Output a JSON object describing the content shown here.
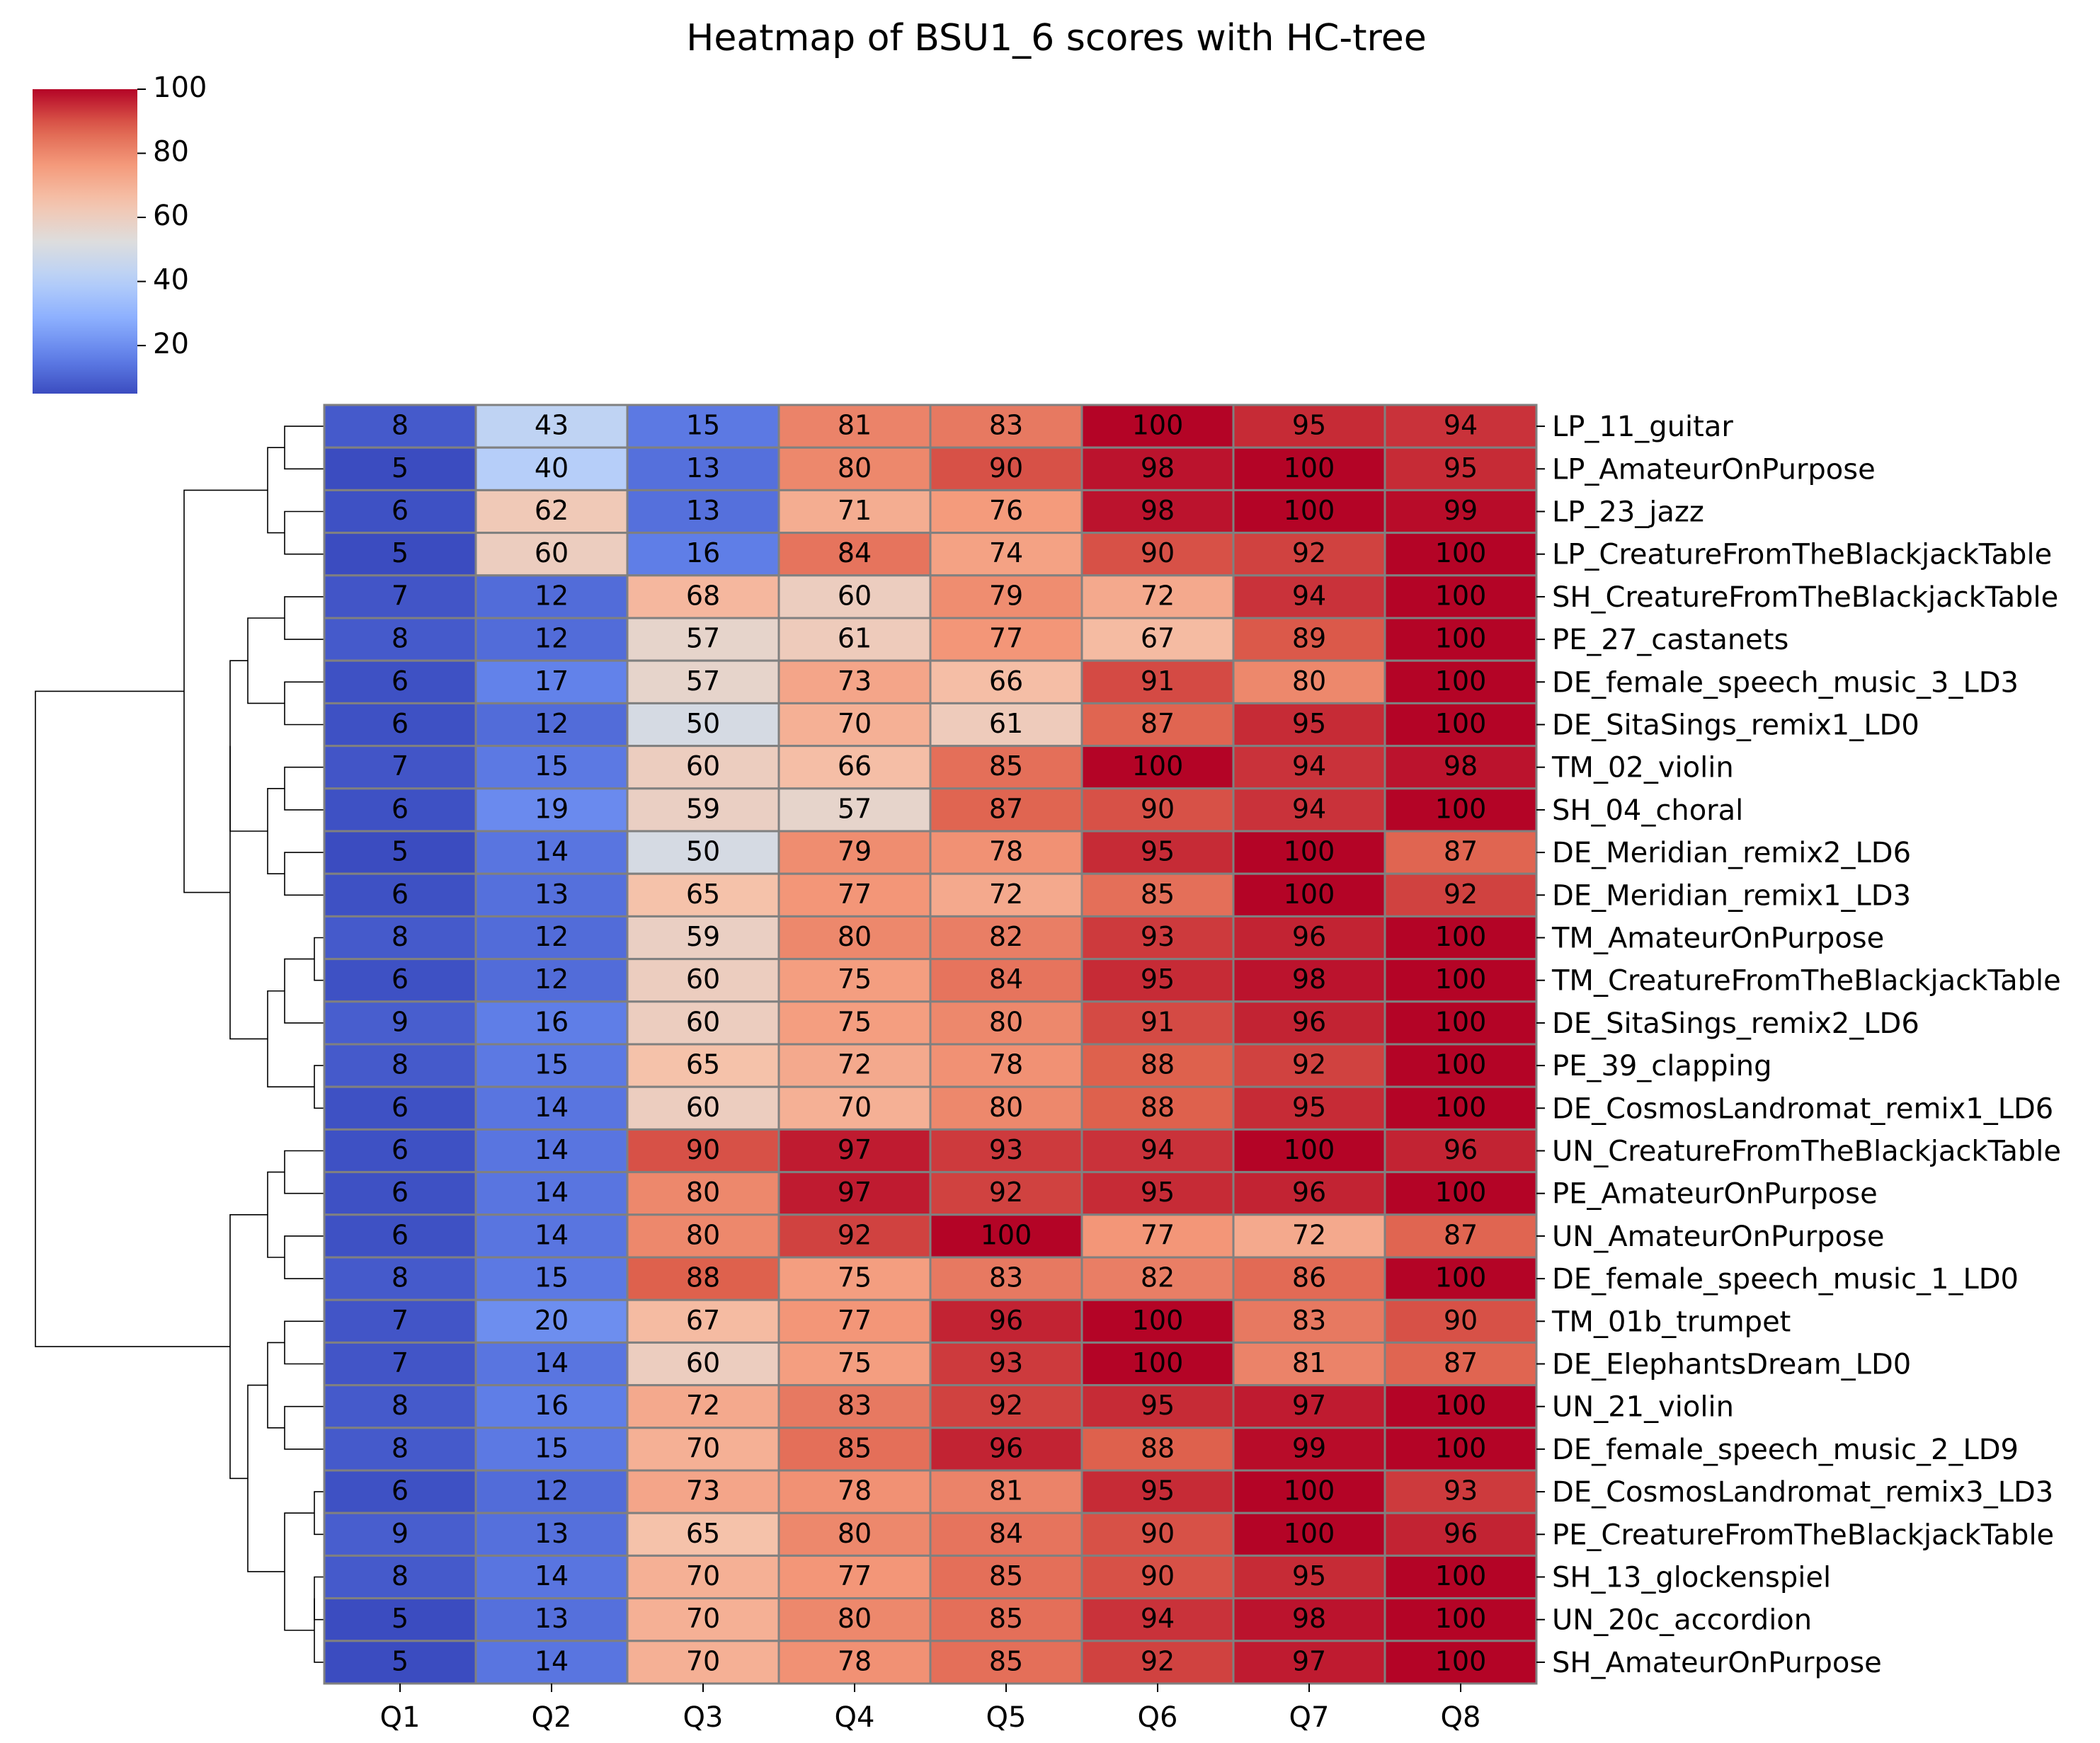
{
  "chart_data": {
    "type": "heatmap",
    "title": "Heatmap of BSU1_6 scores with HC-tree",
    "xlabel": "",
    "ylabel": "",
    "columns": [
      "Q1",
      "Q2",
      "Q3",
      "Q4",
      "Q5",
      "Q6",
      "Q7",
      "Q8"
    ],
    "rows": [
      "LP_11_guitar",
      "LP_AmateurOnPurpose",
      "LP_23_jazz",
      "LP_CreatureFromTheBlackjackTable",
      "SH_CreatureFromTheBlackjackTable",
      "PE_27_castanets",
      "DE_female_speech_music_3_LD3",
      "DE_SitaSings_remix1_LD0",
      "TM_02_violin",
      "SH_04_choral",
      "DE_Meridian_remix2_LD6",
      "DE_Meridian_remix1_LD3",
      "TM_AmateurOnPurpose",
      "TM_CreatureFromTheBlackjackTable",
      "DE_SitaSings_remix2_LD6",
      "PE_39_clapping",
      "DE_CosmosLandromat_remix1_LD6",
      "UN_CreatureFromTheBlackjackTable",
      "PE_AmateurOnPurpose",
      "UN_AmateurOnPurpose",
      "DE_female_speech_music_1_LD0",
      "TM_01b_trumpet",
      "DE_ElephantsDream_LD0",
      "UN_21_violin",
      "DE_female_speech_music_2_LD9",
      "DE_CosmosLandromat_remix3_LD3",
      "PE_CreatureFromTheBlackjackTable",
      "SH_13_glockenspiel",
      "UN_20c_accordion",
      "SH_AmateurOnPurpose"
    ],
    "values": [
      [
        8,
        43,
        15,
        81,
        83,
        100,
        95,
        94
      ],
      [
        5,
        40,
        13,
        80,
        90,
        98,
        100,
        95
      ],
      [
        6,
        62,
        13,
        71,
        76,
        98,
        100,
        99
      ],
      [
        5,
        60,
        16,
        84,
        74,
        90,
        92,
        100
      ],
      [
        7,
        12,
        68,
        60,
        79,
        72,
        94,
        100
      ],
      [
        8,
        12,
        57,
        61,
        77,
        67,
        89,
        100
      ],
      [
        6,
        17,
        57,
        73,
        66,
        91,
        80,
        100
      ],
      [
        6,
        12,
        50,
        70,
        61,
        87,
        95,
        100
      ],
      [
        7,
        15,
        60,
        66,
        85,
        100,
        94,
        98
      ],
      [
        6,
        19,
        59,
        57,
        87,
        90,
        94,
        100
      ],
      [
        5,
        14,
        50,
        79,
        78,
        95,
        100,
        87
      ],
      [
        6,
        13,
        65,
        77,
        72,
        85,
        100,
        92
      ],
      [
        8,
        12,
        59,
        80,
        82,
        93,
        96,
        100
      ],
      [
        6,
        12,
        60,
        75,
        84,
        95,
        98,
        100
      ],
      [
        9,
        16,
        60,
        75,
        80,
        91,
        96,
        100
      ],
      [
        8,
        15,
        65,
        72,
        78,
        88,
        92,
        100
      ],
      [
        6,
        14,
        60,
        70,
        80,
        88,
        95,
        100
      ],
      [
        6,
        14,
        90,
        97,
        93,
        94,
        100,
        96
      ],
      [
        6,
        14,
        80,
        97,
        92,
        95,
        96,
        100
      ],
      [
        6,
        14,
        80,
        92,
        100,
        77,
        72,
        87
      ],
      [
        8,
        15,
        88,
        75,
        83,
        82,
        86,
        100
      ],
      [
        7,
        20,
        67,
        77,
        96,
        100,
        83,
        90
      ],
      [
        7,
        14,
        60,
        75,
        93,
        100,
        81,
        87
      ],
      [
        8,
        16,
        72,
        83,
        92,
        95,
        97,
        100
      ],
      [
        8,
        15,
        70,
        85,
        96,
        88,
        99,
        100
      ],
      [
        6,
        12,
        73,
        78,
        81,
        95,
        100,
        93
      ],
      [
        9,
        13,
        65,
        80,
        84,
        90,
        100,
        96
      ],
      [
        8,
        14,
        70,
        77,
        85,
        90,
        95,
        100
      ],
      [
        5,
        13,
        70,
        80,
        85,
        94,
        98,
        100
      ],
      [
        5,
        14,
        70,
        78,
        85,
        92,
        97,
        100
      ]
    ],
    "colormap": "coolwarm",
    "vmin": 5,
    "vmax": 100,
    "colorbar_ticks": [
      20,
      40,
      60,
      80,
      100
    ],
    "colorbar_position": "top-left",
    "dendrogram": "rows",
    "cell_border_color": "#808080"
  }
}
